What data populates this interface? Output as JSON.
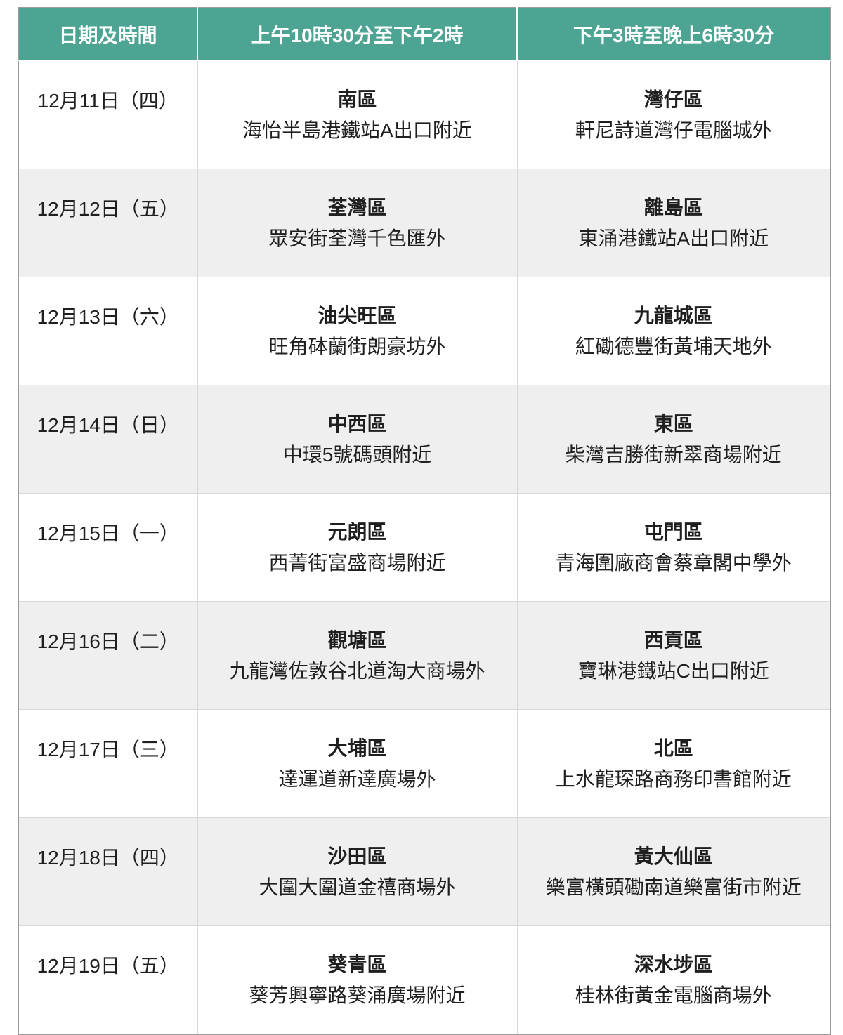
{
  "colors": {
    "header_bg": "#4DA493",
    "header_text": "#FFFFFF",
    "row_alt_bg": "#EFEFEF",
    "row_bg": "#FFFFFF",
    "body_text": "#1F1F1F",
    "outer_border": "#9C9C9C",
    "inner_border": "#D8D8D8"
  },
  "table": {
    "headers": [
      "日期及時間",
      "上午10時30分至下午2時",
      "下午3時至晚上6時30分"
    ],
    "rows": [
      {
        "date": "12月11日（四）",
        "morning": {
          "district": "南區",
          "location": "海怡半島港鐵站A出口附近"
        },
        "afternoon": {
          "district": "灣仔區",
          "location": "軒尼詩道灣仔電腦城外"
        }
      },
      {
        "date": "12月12日（五）",
        "morning": {
          "district": "荃灣區",
          "location": "眾安街荃灣千色匯外"
        },
        "afternoon": {
          "district": "離島區",
          "location": "東涌港鐵站A出口附近"
        }
      },
      {
        "date": "12月13日（六）",
        "morning": {
          "district": "油尖旺區",
          "location": "旺角砵蘭街朗豪坊外"
        },
        "afternoon": {
          "district": "九龍城區",
          "location": "紅磡德豐街黃埔天地外"
        }
      },
      {
        "date": "12月14日（日）",
        "morning": {
          "district": "中西區",
          "location": "中環5號碼頭附近"
        },
        "afternoon": {
          "district": "東區",
          "location": "柴灣吉勝街新翠商場附近"
        }
      },
      {
        "date": "12月15日（一）",
        "morning": {
          "district": "元朗區",
          "location": "西菁街富盛商場附近"
        },
        "afternoon": {
          "district": "屯門區",
          "location": "青海圍廠商會蔡章閣中學外"
        }
      },
      {
        "date": "12月16日（二）",
        "morning": {
          "district": "觀塘區",
          "location": "九龍灣佐敦谷北道淘大商場外"
        },
        "afternoon": {
          "district": "西貢區",
          "location": "寶琳港鐵站C出口附近"
        }
      },
      {
        "date": "12月17日（三）",
        "morning": {
          "district": "大埔區",
          "location": "達運道新達廣場外"
        },
        "afternoon": {
          "district": "北區",
          "location": "上水龍琛路商務印書館附近"
        }
      },
      {
        "date": "12月18日（四）",
        "morning": {
          "district": "沙田區",
          "location": "大圍大圍道金禧商場外"
        },
        "afternoon": {
          "district": "黃大仙區",
          "location": "樂富橫頭磡南道樂富街市附近"
        }
      },
      {
        "date": "12月19日（五）",
        "morning": {
          "district": "葵青區",
          "location": "葵芳興寧路葵涌廣場附近"
        },
        "afternoon": {
          "district": "深水埗區",
          "location": "桂林街黃金電腦商場外"
        }
      }
    ]
  }
}
